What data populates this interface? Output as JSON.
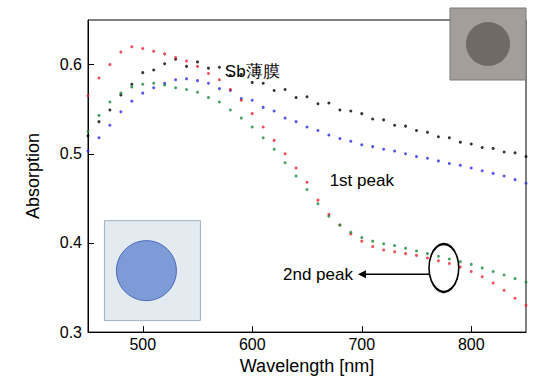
{
  "chart_data": {
    "type": "scatter",
    "x_label": "Wavelength [nm]",
    "y_label": "Absorption",
    "x": [
      450,
      460,
      470,
      480,
      490,
      500,
      510,
      520,
      530,
      540,
      550,
      560,
      570,
      580,
      590,
      600,
      610,
      620,
      630,
      640,
      650,
      660,
      670,
      680,
      690,
      700,
      710,
      720,
      730,
      740,
      750,
      760,
      770,
      780,
      790,
      800,
      810,
      820,
      830,
      840,
      850
    ],
    "series": [
      {
        "color": "#000000",
        "values": [
          0.52,
          0.536,
          0.549,
          0.566,
          0.578,
          0.591,
          0.594,
          0.601,
          0.606,
          0.598,
          0.603,
          0.596,
          0.597,
          0.588,
          0.589,
          0.58,
          0.579,
          0.571,
          0.572,
          0.563,
          0.564,
          0.556,
          0.557,
          0.549,
          0.548,
          0.545,
          0.539,
          0.538,
          0.532,
          0.531,
          0.526,
          0.524,
          0.519,
          0.518,
          0.513,
          0.511,
          0.507,
          0.506,
          0.502,
          0.501,
          0.497
        ]
      },
      {
        "color": "#2a2ae6",
        "values": [
          0.503,
          0.518,
          0.532,
          0.547,
          0.559,
          0.568,
          0.574,
          0.579,
          0.583,
          0.584,
          0.582,
          0.579,
          0.573,
          0.571,
          0.562,
          0.56,
          0.552,
          0.548,
          0.54,
          0.536,
          0.53,
          0.526,
          0.521,
          0.517,
          0.514,
          0.51,
          0.508,
          0.505,
          0.503,
          0.5,
          0.497,
          0.495,
          0.492,
          0.489,
          0.487,
          0.484,
          0.481,
          0.478,
          0.475,
          0.471,
          0.467
        ]
      },
      {
        "color": "#e8202a",
        "values": [
          0.565,
          0.585,
          0.6,
          0.614,
          0.62,
          0.618,
          0.615,
          0.612,
          0.608,
          0.604,
          0.598,
          0.59,
          0.583,
          0.572,
          0.56,
          0.545,
          0.53,
          0.515,
          0.5,
          0.484,
          0.468,
          0.448,
          0.432,
          0.42,
          0.41,
          0.402,
          0.396,
          0.392,
          0.39,
          0.388,
          0.386,
          0.383,
          0.38,
          0.377,
          0.373,
          0.368,
          0.362,
          0.355,
          0.347,
          0.338,
          0.33
        ]
      },
      {
        "color": "#1a8a3a",
        "values": [
          0.525,
          0.543,
          0.558,
          0.568,
          0.575,
          0.578,
          0.579,
          0.577,
          0.574,
          0.572,
          0.569,
          0.563,
          0.558,
          0.549,
          0.54,
          0.53,
          0.518,
          0.505,
          0.49,
          0.475,
          0.46,
          0.444,
          0.43,
          0.42,
          0.412,
          0.406,
          0.402,
          0.399,
          0.397,
          0.394,
          0.391,
          0.388,
          0.385,
          0.382,
          0.379,
          0.376,
          0.372,
          0.368,
          0.364,
          0.36,
          0.356
        ]
      }
    ],
    "annotations": [
      "Sb薄膜",
      "1st peak",
      "2nd peak"
    ],
    "xlim": [
      450,
      850
    ],
    "xticks": [
      500,
      600,
      700,
      800
    ],
    "ylim": [
      0.3,
      0.65
    ],
    "yticks": [
      0.3,
      0.4,
      0.5,
      0.6
    ],
    "grid": false,
    "marker": "circle"
  }
}
